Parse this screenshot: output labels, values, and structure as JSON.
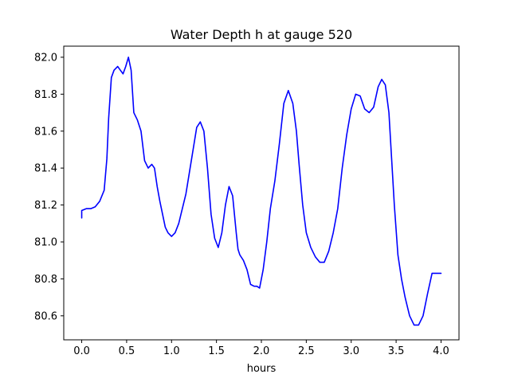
{
  "chart_data": {
    "type": "line",
    "title": "Water Depth h at gauge 520",
    "xlabel": "hours",
    "ylabel": "",
    "xlim": [
      -0.2,
      4.2
    ],
    "ylim": [
      80.47,
      82.06
    ],
    "grid": false,
    "x_ticks": [
      0.0,
      0.5,
      1.0,
      1.5,
      2.0,
      2.5,
      3.0,
      3.5,
      4.0
    ],
    "x_tick_labels": [
      "0.0",
      "0.5",
      "1.0",
      "1.5",
      "2.0",
      "2.5",
      "3.0",
      "3.5",
      "4.0"
    ],
    "y_ticks": [
      80.6,
      80.8,
      81.0,
      81.2,
      81.4,
      81.6,
      81.8,
      82.0
    ],
    "y_tick_labels": [
      "80.6",
      "80.8",
      "81.0",
      "81.2",
      "81.4",
      "81.6",
      "81.8",
      "82.0"
    ],
    "series": [
      {
        "color": "#0000ff",
        "x": [
          0.0,
          0.0,
          0.05,
          0.1,
          0.15,
          0.2,
          0.25,
          0.28,
          0.3,
          0.33,
          0.36,
          0.4,
          0.43,
          0.46,
          0.49,
          0.52,
          0.55,
          0.58,
          0.62,
          0.66,
          0.7,
          0.74,
          0.76,
          0.78,
          0.81,
          0.84,
          0.87,
          0.9,
          0.93,
          0.96,
          1.0,
          1.04,
          1.08,
          1.12,
          1.16,
          1.2,
          1.24,
          1.28,
          1.32,
          1.36,
          1.4,
          1.44,
          1.48,
          1.52,
          1.56,
          1.6,
          1.64,
          1.68,
          1.72,
          1.74,
          1.76,
          1.8,
          1.84,
          1.88,
          1.92,
          1.95,
          1.98,
          2.02,
          2.06,
          2.1,
          2.15,
          2.2,
          2.25,
          2.3,
          2.35,
          2.39,
          2.42,
          2.46,
          2.5,
          2.55,
          2.6,
          2.65,
          2.7,
          2.75,
          2.8,
          2.85,
          2.9,
          2.95,
          3.0,
          3.05,
          3.1,
          3.15,
          3.2,
          3.25,
          3.3,
          3.34,
          3.38,
          3.42,
          3.45,
          3.48,
          3.52,
          3.56,
          3.6,
          3.65,
          3.7,
          3.75,
          3.8,
          3.85,
          3.9,
          3.95,
          4.0
        ],
        "y": [
          81.13,
          81.17,
          81.18,
          81.18,
          81.19,
          81.22,
          81.28,
          81.45,
          81.67,
          81.89,
          81.93,
          81.95,
          81.93,
          81.91,
          81.95,
          82.0,
          81.93,
          81.7,
          81.66,
          81.6,
          81.44,
          81.4,
          81.41,
          81.42,
          81.4,
          81.3,
          81.22,
          81.15,
          81.08,
          81.05,
          81.03,
          81.05,
          81.1,
          81.18,
          81.26,
          81.38,
          81.5,
          81.62,
          81.65,
          81.6,
          81.4,
          81.15,
          81.02,
          80.97,
          81.05,
          81.2,
          81.3,
          81.25,
          81.05,
          80.96,
          80.93,
          80.9,
          80.85,
          80.77,
          80.76,
          80.76,
          80.75,
          80.85,
          81.0,
          81.18,
          81.33,
          81.53,
          81.75,
          81.82,
          81.75,
          81.6,
          81.42,
          81.2,
          81.05,
          80.97,
          80.92,
          80.89,
          80.89,
          80.95,
          81.05,
          81.18,
          81.4,
          81.58,
          81.72,
          81.8,
          81.79,
          81.72,
          81.7,
          81.73,
          81.84,
          81.88,
          81.85,
          81.7,
          81.45,
          81.2,
          80.93,
          80.8,
          80.7,
          80.6,
          80.55,
          80.55,
          80.6,
          80.72,
          80.83,
          80.83,
          80.83
        ]
      }
    ]
  }
}
